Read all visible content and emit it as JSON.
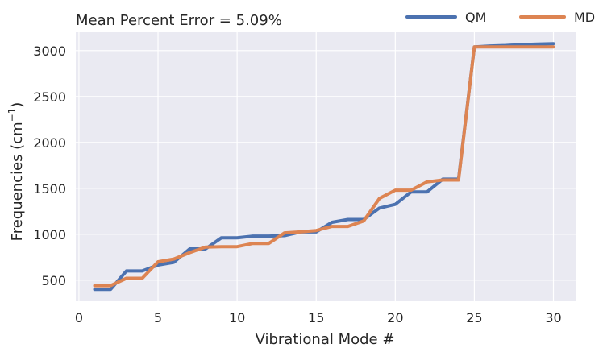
{
  "chart_data": {
    "type": "line",
    "title": "Mean Percent Error = 5.09%",
    "xlabel": "Vibrational Mode #",
    "ylabel_main": "Frequencies (cm",
    "ylabel_sup": "−1",
    "ylabel_close": ")",
    "xlim": [
      -0.2,
      31.4
    ],
    "ylim": [
      270,
      3200
    ],
    "xticks": [
      0,
      5,
      10,
      15,
      20,
      25,
      30
    ],
    "yticks": [
      500,
      1000,
      1500,
      2000,
      2500,
      3000
    ],
    "grid": true,
    "legend_position": "top-right",
    "x": [
      1,
      2,
      3,
      4,
      5,
      6,
      7,
      8,
      9,
      10,
      11,
      12,
      13,
      14,
      15,
      16,
      17,
      18,
      19,
      20,
      21,
      22,
      23,
      24,
      25,
      26,
      27,
      28,
      29,
      30
    ],
    "series": [
      {
        "name": "QM",
        "color": "#4c72b0",
        "values": [
          400,
          400,
          600,
          600,
          665,
          695,
          840,
          840,
          960,
          960,
          980,
          980,
          985,
          1025,
          1025,
          1130,
          1160,
          1160,
          1285,
          1325,
          1460,
          1460,
          1600,
          1600,
          3040,
          3050,
          3055,
          3065,
          3070,
          3075
        ]
      },
      {
        "name": "MD",
        "color": "#dd8452",
        "values": [
          440,
          440,
          520,
          520,
          700,
          730,
          800,
          860,
          865,
          865,
          900,
          900,
          1015,
          1025,
          1040,
          1085,
          1085,
          1145,
          1390,
          1480,
          1480,
          1570,
          1590,
          1590,
          3040,
          3040,
          3040,
          3040,
          3040,
          3040
        ]
      }
    ]
  }
}
